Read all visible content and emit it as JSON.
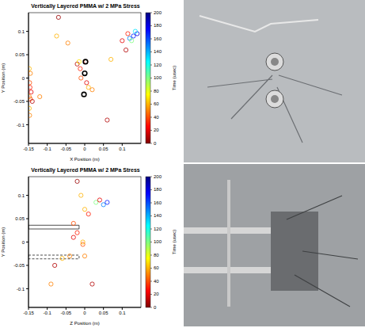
{
  "chart_data": [
    {
      "type": "scatter",
      "title": "Vertically Layered PMMA w/ 2 MPa Stress",
      "x_label": "X Position (m)",
      "y_label": "Y Position (m)",
      "xlim": [
        -0.15,
        0.15
      ],
      "xticks": [
        -0.15,
        -0.1,
        -0.05,
        0,
        0.05,
        0.1
      ],
      "ylim": [
        -0.14,
        0.14
      ],
      "yticks": [
        -0.1,
        -0.05,
        0,
        0.05,
        0.1
      ],
      "marker": "open circle",
      "points": {
        "x": [
          -0.148,
          -0.145,
          -0.147,
          -0.146,
          -0.143,
          -0.148,
          -0.145,
          -0.14,
          -0.148,
          -0.147,
          -0.12,
          -0.07,
          -0.075,
          -0.045,
          -0.02,
          -0.015,
          -0.012,
          -0.01,
          0.005,
          0.01,
          0.02,
          0.06,
          0.07,
          0.003,
          0.1,
          0.11,
          0.12,
          0.125,
          0.13,
          0.14,
          0.135,
          0.115
        ],
        "y": [
          0.02,
          0.01,
          -0.01,
          -0.02,
          -0.03,
          -0.04,
          -0.045,
          -0.05,
          -0.065,
          -0.08,
          -0.04,
          0.13,
          0.09,
          0.075,
          0.03,
          0.035,
          0.02,
          0.0,
          -0.01,
          -0.02,
          -0.025,
          -0.09,
          0.04,
          0.035,
          0.08,
          0.06,
          0.085,
          0.08,
          0.09,
          0.095,
          0.1,
          0.095
        ],
        "time": [
          60,
          50,
          40,
          30,
          20,
          50,
          40,
          10,
          60,
          50,
          50,
          5,
          60,
          50,
          10,
          70,
          30,
          40,
          20,
          60,
          50,
          10,
          60,
          30,
          20,
          10,
          150,
          100,
          170,
          180,
          130,
          30
        ]
      },
      "sensors": {
        "x": [
          0.002,
          0.0,
          -0.002
        ],
        "y": [
          0.035,
          0.01,
          -0.035
        ],
        "color": "#000000"
      },
      "colorbar": {
        "label": "Time (usec)",
        "range": [
          0,
          200
        ],
        "ticks": [
          0,
          20,
          40,
          60,
          80,
          100,
          120,
          140,
          160,
          180,
          200
        ]
      }
    },
    {
      "type": "scatter",
      "title": "Vertically Layered PMMA w/ 2 MPa Stress",
      "x_label": "Z Position (m)",
      "y_label": "Y Position (m)",
      "xlim": [
        -0.15,
        0.15
      ],
      "xticks": [
        -0.15,
        -0.1,
        -0.05,
        0,
        0.05,
        0.1
      ],
      "ylim": [
        -0.14,
        0.14
      ],
      "yticks": [
        -0.1,
        -0.05,
        0,
        0.05,
        0.1
      ],
      "marker": "open circle",
      "points": {
        "x": [
          -0.02,
          -0.01,
          -0.03,
          -0.02,
          -0.005,
          -0.04,
          -0.06,
          -0.08,
          -0.09,
          0.02,
          0.05,
          0.06,
          0.03,
          0.0,
          0.01,
          0.04,
          -0.03,
          -0.005,
          0.0
        ],
        "y": [
          0.13,
          0.1,
          0.04,
          0.02,
          -0.005,
          -0.03,
          -0.035,
          -0.05,
          -0.09,
          -0.09,
          0.08,
          0.085,
          0.085,
          0.07,
          0.06,
          0.09,
          0.01,
          0.0,
          -0.03
        ],
        "time": [
          5,
          60,
          40,
          30,
          40,
          50,
          60,
          10,
          50,
          10,
          150,
          170,
          100,
          60,
          30,
          20,
          20,
          60,
          50
        ]
      },
      "boreholes": [
        {
          "x": [
            -0.15,
            -0.015
          ],
          "y": [
            0.028,
            0.036
          ],
          "line_style": "solid"
        },
        {
          "x": [
            -0.15,
            -0.015
          ],
          "y": [
            -0.036,
            -0.028
          ],
          "line_style": "dashed"
        }
      ],
      "colorbar": {
        "label": "Time (usec)",
        "range": [
          0,
          200
        ],
        "ticks": [
          0,
          20,
          40,
          60,
          80,
          100,
          120,
          140,
          160,
          180,
          200
        ]
      }
    }
  ]
}
